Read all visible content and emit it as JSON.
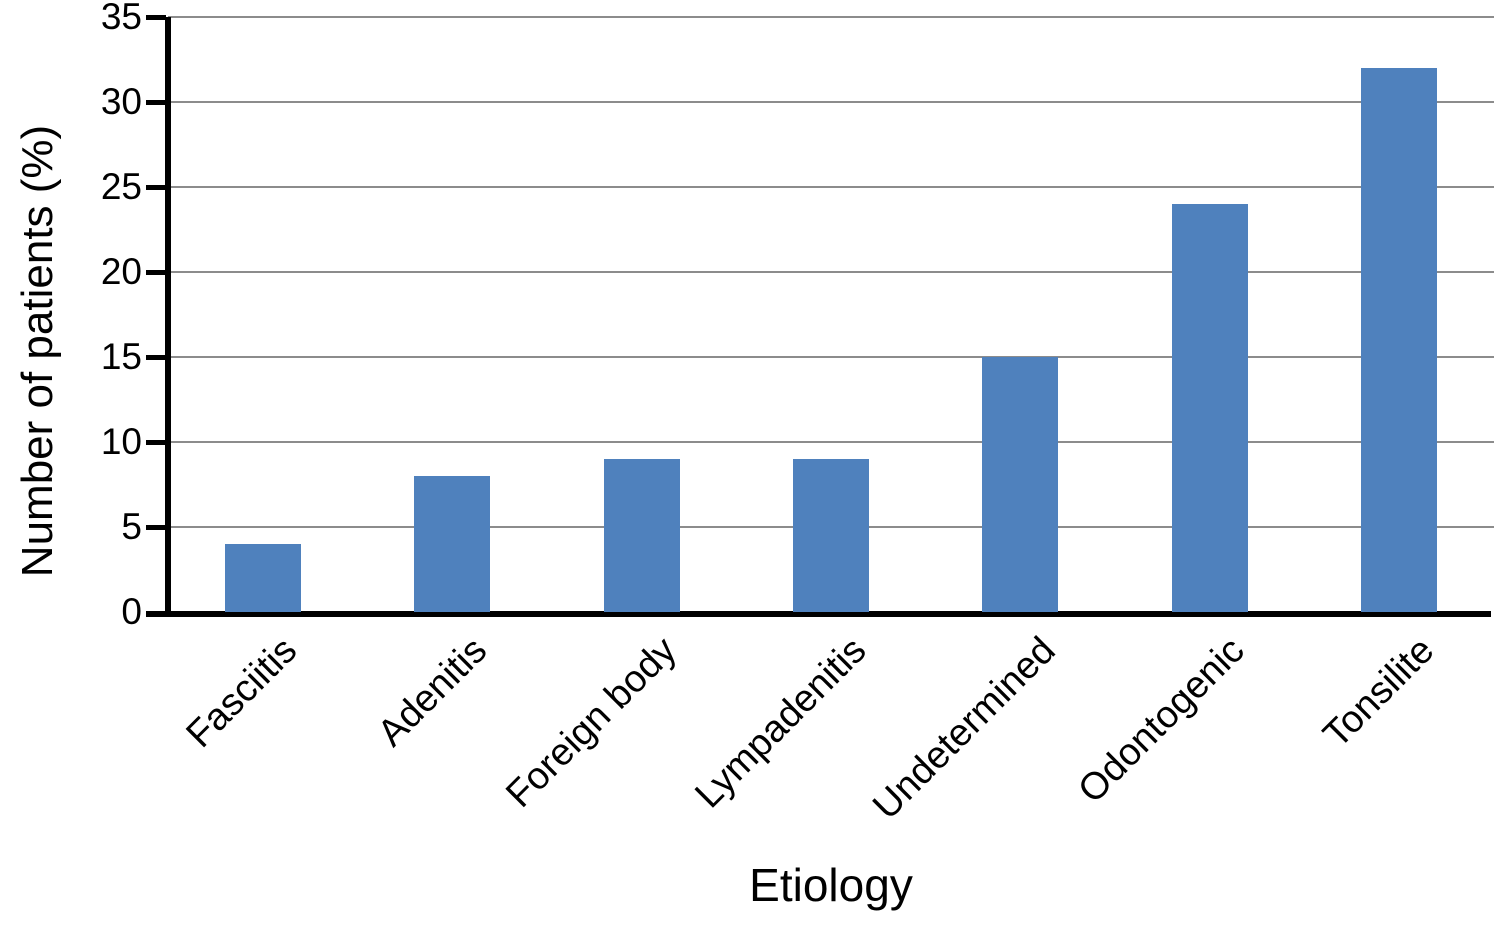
{
  "figure": {
    "background_color": "#ffffff"
  },
  "chart_data": {
    "type": "bar",
    "title": "",
    "xlabel": "Etiology",
    "ylabel": "Number of patients (%)",
    "categories": [
      "Fasciitis",
      "Adenitis",
      "Foreign body",
      "Lympadenitis",
      "Undetermined",
      "Odontogenic",
      "Tonsilite"
    ],
    "values": [
      4,
      8,
      9,
      9,
      15,
      24,
      32
    ],
    "ylim": [
      0,
      35
    ],
    "yticks": [
      0,
      5,
      10,
      15,
      20,
      25,
      30,
      35
    ],
    "grid": "horizontal",
    "legend_position": "none",
    "bar_color": "#4F81BD",
    "gridline_color": "#8C8C8C",
    "axis_color": "#000000",
    "text_color": "#000000"
  }
}
